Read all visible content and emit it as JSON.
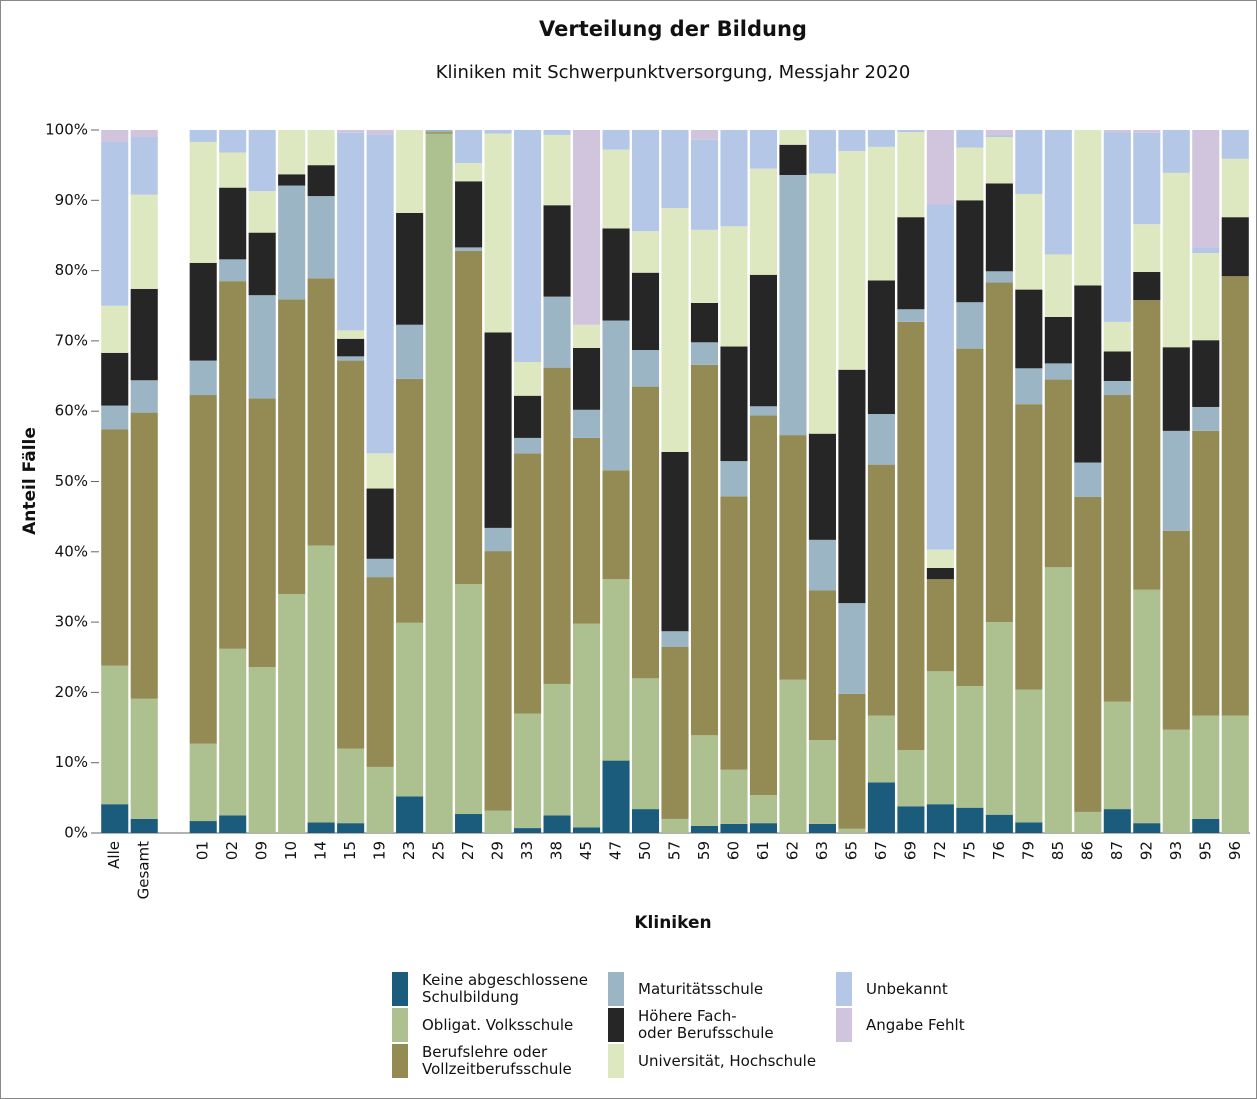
{
  "chart_data": {
    "type": "stacked_bar",
    "title": "Verteilung der Bildung",
    "subtitle": "Kliniken mit Schwerpunktversorgung, Messjahr 2020",
    "x_label": "Kliniken",
    "y_label": "Anteil Fälle",
    "categories": [
      "Alle",
      "Gesamt",
      null,
      "01",
      "02",
      "09",
      "10",
      "14",
      "15",
      "19",
      "23",
      "25",
      "27",
      "29",
      "33",
      "38",
      "45",
      "47",
      "50",
      "57",
      "59",
      "60",
      "61",
      "62",
      "63",
      "65",
      "67",
      "69",
      "72",
      "75",
      "76",
      "79",
      "85",
      "86",
      "87",
      "92",
      "93",
      "95",
      "96"
    ],
    "ylim": [
      0,
      100
    ],
    "yticks": [
      {
        "value": 0,
        "label": "0%"
      },
      {
        "value": 10,
        "label": "10%"
      },
      {
        "value": 20,
        "label": "20%"
      },
      {
        "value": 30,
        "label": "30%"
      },
      {
        "value": 40,
        "label": "40%"
      },
      {
        "value": 50,
        "label": "50%"
      },
      {
        "value": 60,
        "label": "60%"
      },
      {
        "value": 70,
        "label": "70%"
      },
      {
        "value": 80,
        "label": "80%"
      },
      {
        "value": 90,
        "label": "90%"
      },
      {
        "value": 100,
        "label": "100%"
      }
    ],
    "series": [
      {
        "name": "Keine abgeschlossene\nSchulbildung",
        "color": "#1b5b7b",
        "values": [
          4.1,
          2,
          null,
          1.7,
          2.5,
          0,
          0,
          1.5,
          1.4,
          0,
          5.2,
          0,
          2.7,
          0,
          0.7,
          2.5,
          0.8,
          10.3,
          3.4,
          0,
          1,
          1.3,
          1.4,
          0,
          1.3,
          0,
          7.2,
          3.8,
          4.1,
          3.6,
          2.6,
          1.5,
          0,
          0,
          3.4,
          1.4,
          0,
          2,
          0
        ]
      },
      {
        "name": "Obligat. Volksschule",
        "color": "#adc08f",
        "values": [
          19.7,
          17.1,
          null,
          11,
          23.7,
          23.6,
          34,
          39.4,
          10.6,
          9.4,
          24.7,
          99.5,
          32.7,
          3.2,
          16.3,
          18.7,
          29,
          25.8,
          18.6,
          2,
          12.9,
          7.7,
          4,
          21.8,
          11.9,
          0.6,
          9.5,
          8,
          18.9,
          17.3,
          27.4,
          18.9,
          37.8,
          3,
          15.3,
          33.2,
          14.7,
          14.7,
          16.7
        ]
      },
      {
        "name": "Berufslehre oder\nVollzeitberufsschule",
        "color": "#948a54",
        "values": [
          33.6,
          40.7,
          null,
          49.6,
          52.3,
          38.2,
          41.9,
          38,
          55.2,
          27,
          34.7,
          0.2,
          47.4,
          36.9,
          37,
          45,
          26.4,
          15.5,
          41.5,
          24.5,
          52.7,
          38.9,
          54,
          34.8,
          21.3,
          19.2,
          35.7,
          60.9,
          13.1,
          48,
          48.3,
          40.6,
          26.7,
          44.8,
          43.6,
          41.2,
          28.3,
          40.5,
          62.5
        ]
      },
      {
        "name": "Maturitätsschule",
        "color": "#9bb5c5",
        "values": [
          3.4,
          4.6,
          null,
          4.9,
          3.1,
          14.7,
          16.2,
          11.7,
          0.6,
          2.6,
          7.7,
          0.3,
          0.5,
          3.3,
          2.2,
          10.1,
          4,
          21.3,
          5.2,
          2.2,
          3.2,
          5,
          1.3,
          37,
          7.2,
          12.9,
          7.2,
          1.8,
          0,
          6.6,
          1.6,
          5.1,
          2.3,
          4.9,
          2,
          0,
          14.2,
          3.4,
          0
        ]
      },
      {
        "name": "Höhere Fach-\noder Berufsschule",
        "color": "#262626",
        "values": [
          7.5,
          13,
          null,
          13.9,
          10.2,
          8.9,
          1.6,
          4.4,
          2.5,
          10,
          15.9,
          0,
          9.4,
          27.8,
          6,
          13,
          8.8,
          13.1,
          11,
          25.5,
          5.6,
          16.3,
          18.7,
          4.3,
          15.1,
          33.2,
          19,
          13.1,
          1.6,
          14.5,
          12.5,
          11.2,
          6.6,
          25.2,
          4.2,
          4,
          11.9,
          9.5,
          8.4
        ]
      },
      {
        "name": "Universität, Hochschule",
        "color": "#dde8c0",
        "values": [
          6.7,
          13.4,
          null,
          17.2,
          5,
          5.9,
          6.3,
          5,
          1.2,
          5,
          11.8,
          0,
          2.6,
          28.3,
          4.8,
          10,
          3.3,
          11.2,
          5.9,
          34.7,
          10.4,
          17.1,
          15.1,
          2.1,
          37,
          31.1,
          19,
          12.1,
          2.6,
          7.5,
          6.6,
          13.6,
          8.9,
          22.1,
          4.2,
          6.8,
          24.8,
          12.4,
          8.3
        ]
      },
      {
        "name": "Unbekannt",
        "color": "#b4c7e7",
        "values": [
          23.3,
          8.2,
          null,
          1.7,
          3.2,
          8.7,
          0,
          0,
          28.1,
          45.4,
          0,
          0,
          4.7,
          0.5,
          33,
          0.7,
          0,
          2.8,
          14.4,
          11.1,
          12.8,
          13.7,
          5.5,
          0,
          6.2,
          3,
          2.4,
          0.3,
          49.1,
          2.5,
          0.3,
          9.1,
          17.7,
          0,
          27,
          13,
          6.1,
          0.8,
          4.1
        ]
      },
      {
        "name": "Angabe Fehlt",
        "color": "#d0c5dd",
        "values": [
          1.7,
          1,
          null,
          0,
          0,
          0,
          0,
          0,
          0.4,
          0.6,
          0,
          0,
          0,
          0,
          0,
          0,
          27.7,
          0,
          0,
          0,
          1.4,
          0,
          0,
          0,
          0,
          0,
          0,
          0,
          10.6,
          0,
          0.7,
          0,
          0,
          0,
          0.3,
          0.4,
          0,
          16.7,
          0
        ]
      }
    ]
  }
}
